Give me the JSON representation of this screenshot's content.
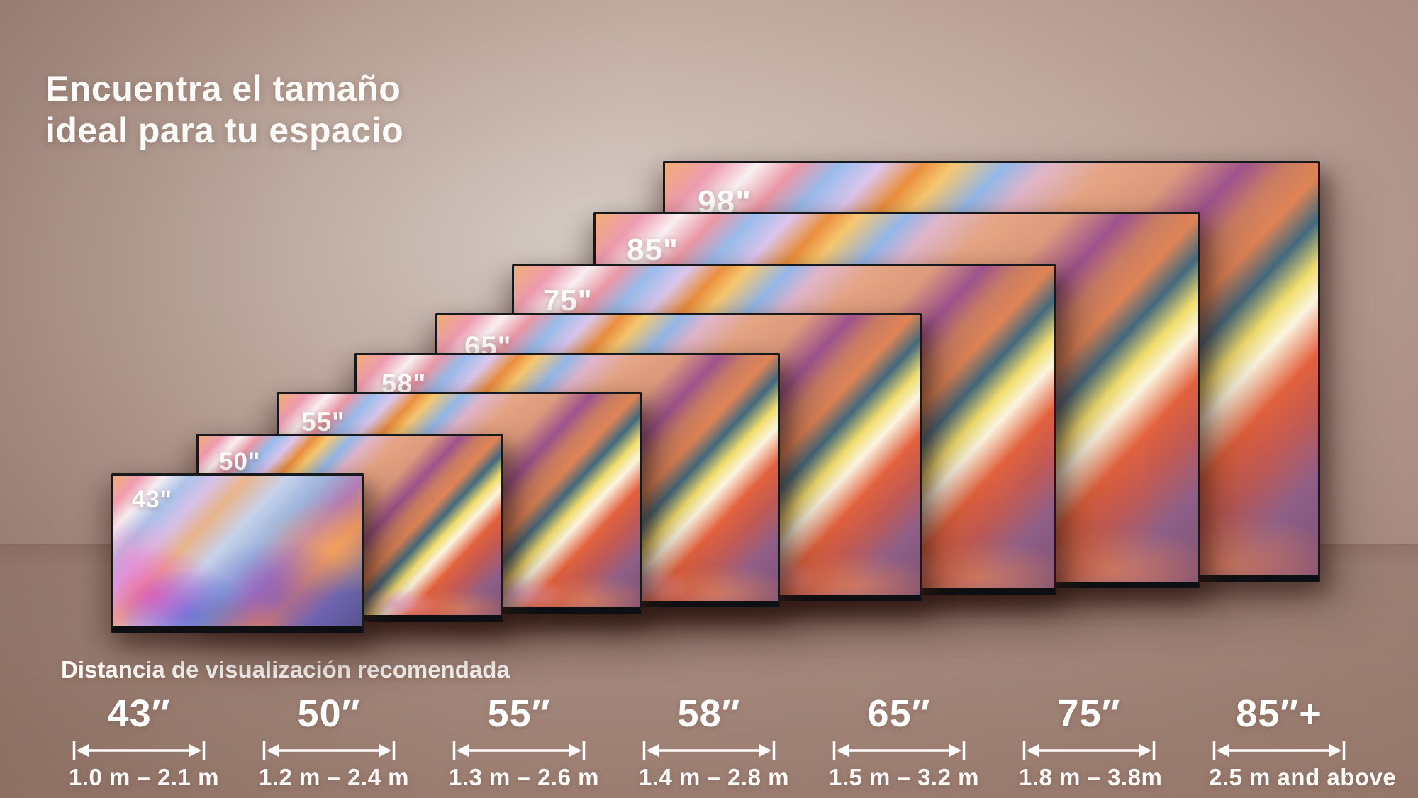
{
  "title": {
    "line1": "Encuentra el tamaño",
    "line2": "ideal para tu espacio"
  },
  "tvs": [
    {
      "size_label": "43\""
    },
    {
      "size_label": "50\""
    },
    {
      "size_label": "55\""
    },
    {
      "size_label": "58\""
    },
    {
      "size_label": "65\""
    },
    {
      "size_label": "75\""
    },
    {
      "size_label": "85\""
    },
    {
      "size_label": "98\""
    }
  ],
  "viewing_distance": {
    "heading": "Distancia de visualización recomendada",
    "columns": [
      {
        "size": "43″",
        "range": "1.0 m – 2.1 m"
      },
      {
        "size": "50″",
        "range": "1.2 m – 2.4 m"
      },
      {
        "size": "55″",
        "range": "1.3 m – 2.6 m"
      },
      {
        "size": "58″",
        "range": "1.4 m – 2.8 m"
      },
      {
        "size": "65″",
        "range": "1.5 m – 3.2 m"
      },
      {
        "size": "75″",
        "range": "1.8 m – 3.8m"
      },
      {
        "size": "85″+",
        "range": "2.5 m and above"
      }
    ]
  },
  "colors": {
    "wall": "#b0948a",
    "floor_shade": "#9a7d70",
    "text": "#ffffff",
    "tv_bezel": "#15171b",
    "arrow": "#ffffff"
  }
}
